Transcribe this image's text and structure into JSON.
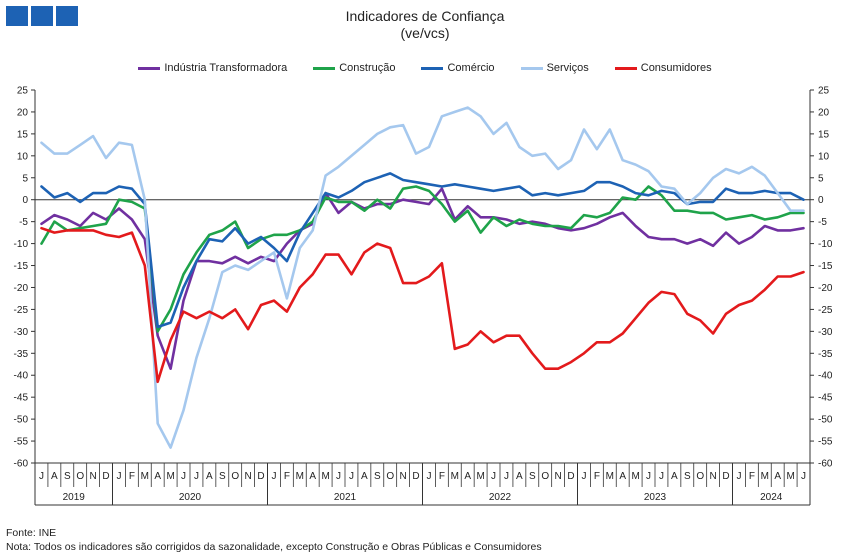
{
  "header": {
    "title": "Indicadores de Confiança",
    "subtitle": "(ve/vcs)"
  },
  "footer": {
    "source": "Fonte: INE",
    "note": "Nota: Todos os indicadores são corrigidos da sazonalidade,  excepto Construção e Obras Públicas e Consumidores"
  },
  "chart_data": {
    "type": "line",
    "title": "Indicadores de Confiança",
    "subtitle": "(ve/vcs)",
    "ylim": [
      -60,
      25
    ],
    "yticks": [
      25,
      20,
      15,
      10,
      5,
      0,
      -5,
      -10,
      -15,
      -20,
      -25,
      -30,
      -35,
      -40,
      -45,
      -50,
      -55,
      -60
    ],
    "grid": false,
    "legend_position": "top",
    "x_months": [
      "J",
      "A",
      "S",
      "O",
      "N",
      "D",
      "J",
      "F",
      "M",
      "A",
      "M",
      "J",
      "J",
      "A",
      "S",
      "O",
      "N",
      "D",
      "J",
      "F",
      "M",
      "A",
      "M",
      "J",
      "J",
      "A",
      "S",
      "O",
      "N",
      "D",
      "J",
      "F",
      "M",
      "A",
      "M",
      "J",
      "J",
      "A",
      "S",
      "O",
      "N",
      "D",
      "J",
      "F",
      "M",
      "A",
      "M",
      "J",
      "J",
      "A",
      "S",
      "O",
      "N",
      "D",
      "J",
      "F",
      "M",
      "A",
      "M",
      "J"
    ],
    "x_years": [
      {
        "label": "2019",
        "start": 0,
        "end": 5
      },
      {
        "label": "2020",
        "start": 6,
        "end": 17
      },
      {
        "label": "2021",
        "start": 18,
        "end": 29
      },
      {
        "label": "2022",
        "start": 30,
        "end": 41
      },
      {
        "label": "2023",
        "start": 42,
        "end": 53
      },
      {
        "label": "2024",
        "start": 54,
        "end": 59
      }
    ],
    "series": [
      {
        "name": "Indústria Transformadora",
        "color": "#7030a0",
        "values": [
          -5.5,
          -3.5,
          -4.5,
          -6,
          -3,
          -4.5,
          -2,
          -4.5,
          -9,
          -31,
          -38.5,
          -23,
          -14,
          -14,
          -14.5,
          -13,
          -14.5,
          -13,
          -14,
          -10,
          -7,
          -5.5,
          1.5,
          -3,
          -0.5,
          -2,
          -1,
          -1,
          0,
          -0.5,
          -1,
          2.5,
          -4.5,
          -1.5,
          -4,
          -4,
          -4.5,
          -5.5,
          -5,
          -5.5,
          -6.5,
          -7,
          -6.5,
          -5.5,
          -4,
          -3,
          -6,
          -8.5,
          -9,
          -9,
          -10,
          -9,
          -10.5,
          -7.5,
          -10,
          -8.5,
          -6,
          -7,
          -7,
          -6.5
        ]
      },
      {
        "name": "Construção",
        "color": "#1fa34a",
        "values": [
          -10,
          -5,
          -7,
          -6.5,
          -6,
          -5.5,
          0,
          -0.5,
          -2,
          -30,
          -25,
          -17,
          -12,
          -8,
          -7,
          -5,
          -11,
          -9,
          -8,
          -8,
          -7,
          -5,
          0.5,
          -0.5,
          -0.5,
          -2.5,
          0,
          -2,
          2.5,
          3,
          2,
          -1,
          -5,
          -2.5,
          -7.5,
          -4,
          -6,
          -4.5,
          -5.5,
          -6,
          -6,
          -6.5,
          -3.5,
          -4,
          -3,
          0.5,
          0,
          3,
          1,
          -2.5,
          -2.5,
          -3,
          -3,
          -4.5,
          -4,
          -3.5,
          -4.5,
          -4,
          -3,
          -3
        ]
      },
      {
        "name": "Comércio",
        "color": "#1d62b4",
        "values": [
          3,
          0.5,
          1.5,
          -0.5,
          1.5,
          1.5,
          3,
          2.5,
          -1,
          -29,
          -28,
          -20,
          -14,
          -9,
          -9.5,
          -6.5,
          -10,
          -8.5,
          -11,
          -14,
          -7.5,
          -3,
          1.5,
          0.5,
          2,
          4,
          5,
          6,
          4.5,
          4,
          3.5,
          3,
          3.5,
          3,
          2.5,
          2,
          2.5,
          3,
          1,
          1.5,
          1,
          1.5,
          2,
          4,
          4,
          3,
          1.5,
          1,
          2,
          1.5,
          -1,
          -0.5,
          -0.5,
          2.5,
          1.5,
          1.5,
          2,
          1.5,
          1.5,
          0
        ]
      },
      {
        "name": "Serviços",
        "color": "#a5c8ee",
        "values": [
          13,
          10.5,
          10.5,
          12.5,
          14.5,
          9.5,
          13,
          12.5,
          0,
          -51,
          -56.5,
          -48,
          -36,
          -27,
          -16.5,
          -15,
          -16,
          -14,
          -12,
          -22.5,
          -11,
          -7,
          5.5,
          7.5,
          10,
          12.5,
          15,
          16.5,
          17,
          10.5,
          12,
          19,
          20,
          21,
          19,
          15,
          17.5,
          12,
          10,
          10.5,
          7,
          9,
          16,
          11.5,
          16,
          9,
          8,
          6.5,
          3,
          2.5,
          -1,
          1.5,
          5,
          7,
          6,
          7.5,
          5.5,
          1.5,
          -2.5,
          -2.5
        ]
      },
      {
        "name": "Consumidores",
        "color": "#e31a1c",
        "values": [
          -6.5,
          -7.5,
          -7,
          -7,
          -7,
          -8,
          -8.5,
          -7.5,
          -15,
          -41.5,
          -32,
          -25.5,
          -27,
          -25.5,
          -27,
          -25,
          -29.5,
          -24,
          -23,
          -25.5,
          -20,
          -17,
          -12.5,
          -12.5,
          -17,
          -12,
          -10,
          -11,
          -19,
          -19,
          -17.5,
          -14.5,
          -34,
          -33,
          -30,
          -32.5,
          -31,
          -31,
          -35,
          -38.5,
          -38.5,
          -37,
          -35,
          -32.5,
          -32.5,
          -30.5,
          -27,
          -23.5,
          -21,
          -21.5,
          -26,
          -27.5,
          -30.5,
          -26,
          -24,
          -23,
          -20.5,
          -17.5,
          -17.5,
          -16.5
        ]
      }
    ]
  }
}
